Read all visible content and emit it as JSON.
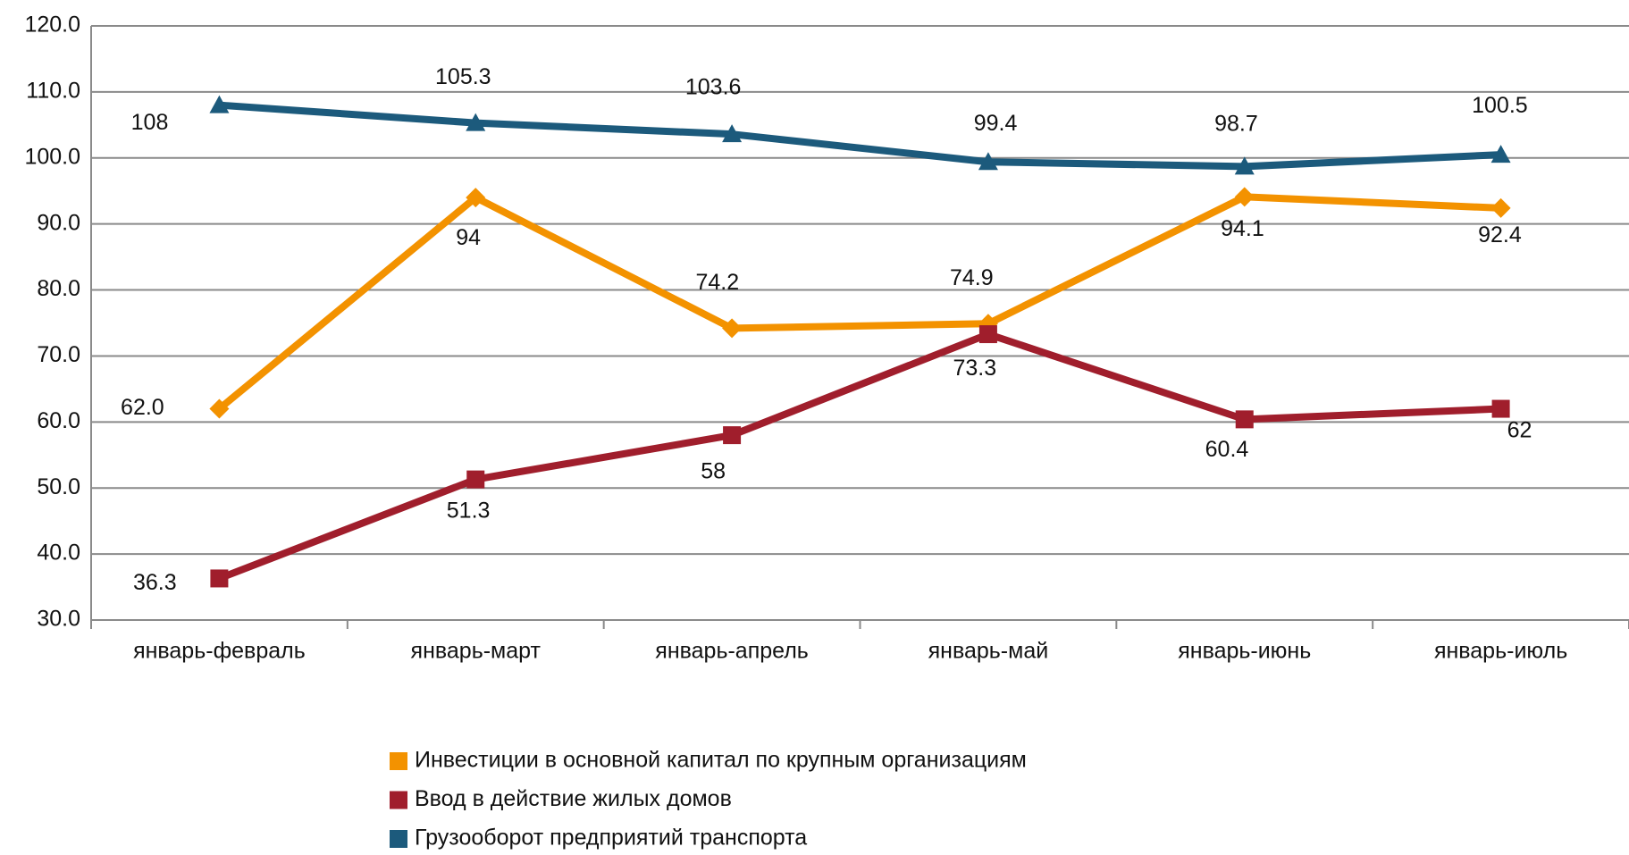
{
  "chart_data": {
    "type": "line",
    "categories": [
      "январь-февраль",
      "январь-март",
      "январь-апрель",
      "январь-май",
      "январь-июнь",
      "январь-июль"
    ],
    "series": [
      {
        "name": "Инвестиции в основной капитал по крупным организациям",
        "color": "#f39200",
        "marker": "diamond",
        "values": [
          62,
          94,
          74.2,
          74.9,
          94.1,
          92.4
        ],
        "value_labels": [
          "62.0",
          "94",
          "74.2",
          "74.9",
          "94.1",
          "92.4"
        ]
      },
      {
        "name": "Ввод в действие жилых домов",
        "color": "#a01e2c",
        "marker": "square",
        "values": [
          36.3,
          51.3,
          58,
          73.3,
          60.4,
          62
        ],
        "value_labels": [
          "36.3",
          "51.3",
          "58",
          "73.3",
          "60.4",
          "62"
        ]
      },
      {
        "name": "Грузооборот предприятий транспорта",
        "color": "#1c5a7c",
        "marker": "triangle",
        "values": [
          108,
          105.3,
          103.6,
          99.4,
          98.7,
          100.5
        ],
        "value_labels": [
          "108",
          "105.3",
          "103.6",
          "99.4",
          "98.7",
          "100.5"
        ]
      }
    ],
    "ylim": [
      30,
      120
    ],
    "yticks": [
      {
        "value": 30,
        "label": "30.0"
      },
      {
        "value": 40,
        "label": "40.0"
      },
      {
        "value": 50,
        "label": "50.0"
      },
      {
        "value": 60,
        "label": "60.0"
      },
      {
        "value": 70,
        "label": "70.0"
      },
      {
        "value": 80,
        "label": "80.0"
      },
      {
        "value": 90,
        "label": "90.0"
      },
      {
        "value": 100,
        "label": "100.0"
      },
      {
        "value": 110,
        "label": "110.0"
      },
      {
        "value": 120,
        "label": "120.0"
      }
    ],
    "grid": true,
    "legend": "bottom"
  }
}
